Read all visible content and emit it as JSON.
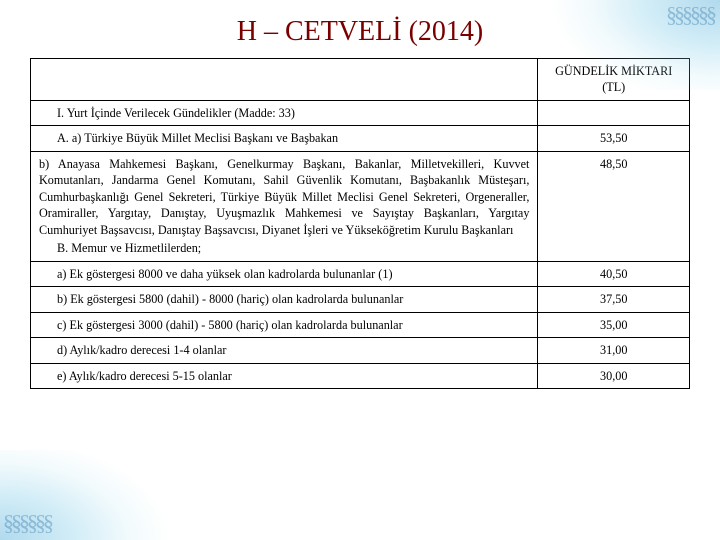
{
  "title": "H – CETVELİ  (2014)",
  "header_amount": "GÜNDELİK MİKTARI (TL)",
  "rows": [
    {
      "desc": "I. Yurt İçinde Verilecek Gündelikler (Madde: 33)",
      "amount": ""
    },
    {
      "desc": "A. a) Türkiye Büyük Millet Meclisi Başkanı ve Başbakan",
      "amount": "53,50"
    },
    {
      "desc": "   b) Anayasa Mahkemesi Başkanı, Genelkurmay Başkanı, Bakanlar, Milletvekilleri, Kuvvet Komutanları, Jandarma Genel Komutanı, Sahil Güvenlik Komutanı, Başbakanlık Müsteşarı, Cumhurbaşkanlığı Genel Sekreteri, Türkiye Büyük Millet Meclisi Genel Sekreteri, Orgeneraller, Oramiraller, Yargıtay, Danıştay, Uyuşmazlık Mahkemesi ve Sayıştay Başkanları, Yargıtay Cumhuriyet Başsavcısı, Danıştay Başsavcısı, Diyanet İşleri ve Yükseköğretim Kurulu Başkanları",
      "desc2": "B. Memur ve Hizmetlilerden;",
      "amount": "48,50",
      "justify": true
    },
    {
      "desc": "   a)     Ek göstergesi 8000 ve daha yüksek olan kadrolarda bulunanlar (1)",
      "desc2": "   b)     Ek göstergesi 5800 (dahil) - 8000 (hariç) olan kadrolarda bulunanlar",
      "desc3": "   c)     Ek göstergesi 3000 (dahil) - 5800 (hariç) olan kadrolarda bulunanlar",
      "desc4": "   d)     Aylık/kadro derecesi 1-4 olanlar",
      "amounts": [
        "40,50",
        "37,50",
        "35,00",
        "31,00"
      ],
      "multi": true
    },
    {
      "desc": "   e)     Aylık/kadro derecesi 5-15 olanlar",
      "amount": "30,00"
    }
  ],
  "colors": {
    "title": "#7a0000",
    "border": "#000000",
    "corner": "#7fc4e0"
  },
  "fontsizes": {
    "title_pt": 21,
    "cell_pt": 9
  }
}
